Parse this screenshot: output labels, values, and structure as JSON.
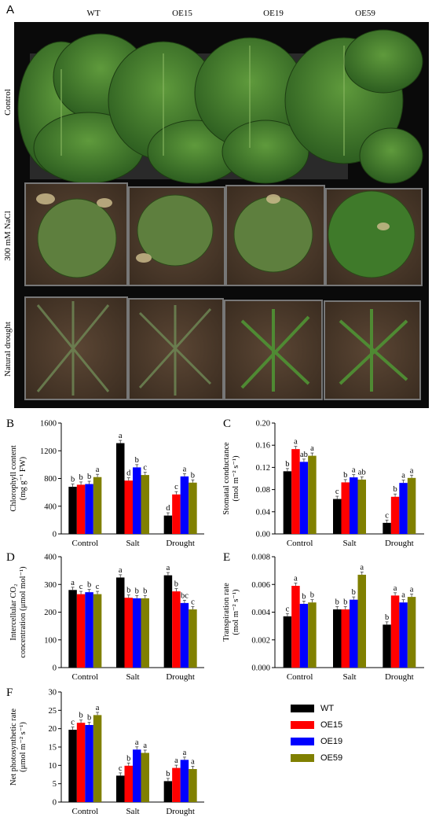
{
  "figure": {
    "panel_a_letter": "A",
    "genotype_labels": [
      "WT",
      "OE15",
      "OE19",
      "OE59"
    ],
    "row_labels": [
      "Control",
      "300 mM NaCl",
      "Natural drought"
    ]
  },
  "colors": {
    "WT": "#000000",
    "OE15": "#ff0000",
    "OE19": "#0000ff",
    "OE59": "#808000"
  },
  "legend": [
    "WT",
    "OE15",
    "OE19",
    "OE59"
  ],
  "chart_data": [
    {
      "panel": "B",
      "type": "bar",
      "ylabel_line1": "Chlorophyll content",
      "ylabel_line2": "(mg g⁻¹ FW)",
      "categories": [
        "Control",
        "Salt",
        "Drought"
      ],
      "ylim": [
        0,
        1600
      ],
      "yticks": [
        "0",
        "400",
        "800",
        "1200",
        "1600"
      ],
      "ytick_values": [
        0,
        400,
        800,
        1200,
        1600
      ],
      "series": [
        {
          "name": "WT",
          "values": [
            680,
            1310,
            265
          ],
          "letters": [
            "b",
            "a",
            "d"
          ]
        },
        {
          "name": "OE15",
          "values": [
            710,
            770,
            570
          ],
          "letters": [
            "b",
            "d",
            "c"
          ]
        },
        {
          "name": "OE19",
          "values": [
            720,
            960,
            830
          ],
          "letters": [
            "b",
            "b",
            "a"
          ]
        },
        {
          "name": "OE59",
          "values": [
            820,
            850,
            740
          ],
          "letters": [
            "a",
            "c",
            "b"
          ]
        }
      ]
    },
    {
      "panel": "C",
      "type": "bar",
      "ylabel_line1": "Stomatal conductance",
      "ylabel_line2": "(mol m⁻² s⁻¹)",
      "categories": [
        "Control",
        "Salt",
        "Drought"
      ],
      "ylim": [
        0,
        0.2
      ],
      "yticks": [
        "0.00",
        "0.04",
        "0.08",
        "0.12",
        "0.16",
        "0.20"
      ],
      "ytick_values": [
        0,
        0.04,
        0.08,
        0.12,
        0.16,
        0.2
      ],
      "series": [
        {
          "name": "WT",
          "values": [
            0.113,
            0.063,
            0.02
          ],
          "letters": [
            "b",
            "c",
            "c"
          ]
        },
        {
          "name": "OE15",
          "values": [
            0.153,
            0.093,
            0.067
          ],
          "letters": [
            "a",
            "b",
            "b"
          ]
        },
        {
          "name": "OE19",
          "values": [
            0.13,
            0.102,
            0.092
          ],
          "letters": [
            "ab",
            "a",
            "a"
          ]
        },
        {
          "name": "OE59",
          "values": [
            0.141,
            0.098,
            0.101
          ],
          "letters": [
            "a",
            "ab",
            "a"
          ]
        }
      ]
    },
    {
      "panel": "D",
      "type": "bar",
      "ylabel_line1": "Intercellular CO₂",
      "ylabel_line2": "concentration (μmol mol⁻¹)",
      "categories": [
        "Control",
        "Salt",
        "Drought"
      ],
      "ylim": [
        0,
        400
      ],
      "yticks": [
        "0",
        "100",
        "200",
        "300",
        "400"
      ],
      "ytick_values": [
        0,
        100,
        200,
        300,
        400
      ],
      "series": [
        {
          "name": "WT",
          "values": [
            280,
            325,
            333
          ],
          "letters": [
            "a",
            "a",
            "a"
          ]
        },
        {
          "name": "OE15",
          "values": [
            265,
            252,
            275
          ],
          "letters": [
            "c",
            "b",
            "b"
          ]
        },
        {
          "name": "OE19",
          "values": [
            272,
            250,
            233
          ],
          "letters": [
            "b",
            "b",
            "bc"
          ]
        },
        {
          "name": "OE59",
          "values": [
            265,
            250,
            210
          ],
          "letters": [
            "c",
            "b",
            "c"
          ]
        }
      ]
    },
    {
      "panel": "E",
      "type": "bar",
      "ylabel_line1": "Transpiration rate",
      "ylabel_line2": "(mol m⁻² s⁻¹)",
      "categories": [
        "Control",
        "Salt",
        "Drought"
      ],
      "ylim": [
        0,
        0.008
      ],
      "yticks": [
        "0.000",
        "0.002",
        "0.004",
        "0.006",
        "0.008"
      ],
      "ytick_values": [
        0,
        0.002,
        0.004,
        0.006,
        0.008
      ],
      "series": [
        {
          "name": "WT",
          "values": [
            0.0037,
            0.0042,
            0.0031
          ],
          "letters": [
            "c",
            "b",
            "b"
          ]
        },
        {
          "name": "OE15",
          "values": [
            0.0059,
            0.0042,
            0.0052
          ],
          "letters": [
            "a",
            "b",
            "a"
          ]
        },
        {
          "name": "OE19",
          "values": [
            0.0046,
            0.0049,
            0.0047
          ],
          "letters": [
            "b",
            "b",
            "a"
          ]
        },
        {
          "name": "OE59",
          "values": [
            0.0047,
            0.0067,
            0.0051
          ],
          "letters": [
            "b",
            "a",
            "a"
          ]
        }
      ]
    },
    {
      "panel": "F",
      "type": "bar",
      "ylabel_line1": "Net photosynthetic rate",
      "ylabel_line2": "(μmol m⁻² s⁻¹)",
      "categories": [
        "Control",
        "Salt",
        "Drought"
      ],
      "ylim": [
        0,
        30
      ],
      "yticks": [
        "0",
        "5",
        "10",
        "15",
        "20",
        "25",
        "30"
      ],
      "ytick_values": [
        0,
        5,
        10,
        15,
        20,
        25,
        30
      ],
      "series": [
        {
          "name": "WT",
          "values": [
            19.7,
            7.2,
            5.7
          ],
          "letters": [
            "c",
            "c",
            "b"
          ]
        },
        {
          "name": "OE15",
          "values": [
            21.6,
            9.9,
            9.3
          ],
          "letters": [
            "b",
            "b",
            "a"
          ]
        },
        {
          "name": "OE19",
          "values": [
            21.0,
            14.3,
            11.5
          ],
          "letters": [
            "b",
            "a",
            "a"
          ]
        },
        {
          "name": "OE59",
          "values": [
            23.7,
            13.4,
            9.0
          ],
          "letters": [
            "a",
            "a",
            "a"
          ]
        }
      ]
    }
  ]
}
